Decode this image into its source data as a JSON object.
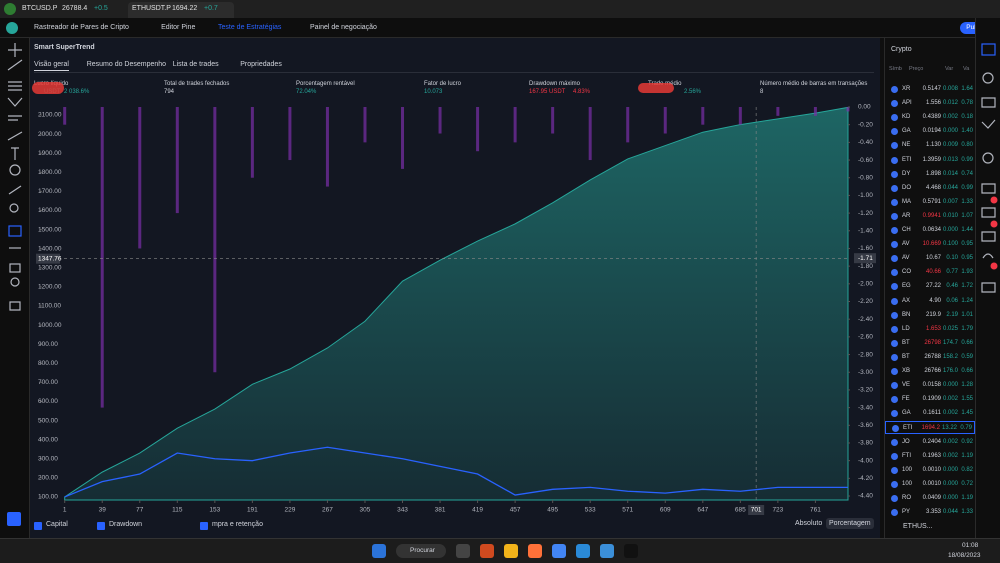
{
  "browser": {
    "tabs": [
      {
        "label": "BTCUSD.P",
        "price": "26788.4",
        "change": "+0.5"
      },
      {
        "label": "ETHUSDT.P",
        "price": "1694.22",
        "change": "+0.7"
      }
    ]
  },
  "header": {
    "menu": [
      "Rastreador de Pares de Cripto",
      "Editor Pine",
      "Teste de Estratégias",
      "Painel de negociação"
    ],
    "publish": "Publicar"
  },
  "strategy": {
    "name": "Smart SuperTrend",
    "tabs": [
      "Visão geral",
      "Resumo do Desempenho",
      "Lista de trades",
      "Propriedades"
    ],
    "metrics": [
      {
        "label": "Lucro líquido",
        "value": "USDT",
        "extra": "2 038.6%"
      },
      {
        "label": "Total de trades fechados",
        "value": "794"
      },
      {
        "label": "Porcentagem rentável",
        "value": "72.04%"
      },
      {
        "label": "Fator de lucro",
        "value": "10.073"
      },
      {
        "label": "Drawdown máximo",
        "value": "167.95 USDT",
        "extra": "4.83%"
      },
      {
        "label": "Trade médio",
        "value": "",
        "extra": "2.56%"
      },
      {
        "label": "Número médio de barras em transações",
        "value": "8"
      }
    ],
    "scale_modes": [
      "Absoluto",
      "Porcentagem"
    ]
  },
  "chart_data": {
    "type": "line",
    "x": [
      1,
      39,
      77,
      115,
      153,
      191,
      229,
      267,
      305,
      343,
      381,
      419,
      457,
      495,
      533,
      571,
      609,
      647,
      685,
      723,
      761,
      794
    ],
    "series": [
      {
        "name": "Capital",
        "color": "#26a69a",
        "style": "area",
        "values": [
          100,
          230,
          330,
          460,
          560,
          690,
          770,
          880,
          1020,
          1230,
          1340,
          1440,
          1530,
          1640,
          1760,
          1870,
          1940,
          2010,
          2050,
          2080,
          2110,
          2140
        ]
      },
      {
        "name": "Drawdown",
        "color": "#7b2fa8",
        "style": "bar",
        "axis": "y2",
        "values": [
          -0.2,
          -3.4,
          -1.6,
          -1.2,
          -3.0,
          -0.8,
          -0.6,
          -0.9,
          -0.4,
          -0.7,
          -0.3,
          -0.5,
          -0.4,
          -0.3,
          -0.6,
          -0.4,
          -0.3,
          -0.2,
          -0.2,
          -0.1,
          -0.1,
          -0.05
        ]
      },
      {
        "name": "mpra e retenção",
        "color": "#2962ff",
        "style": "line",
        "values": [
          100,
          180,
          220,
          330,
          300,
          290,
          330,
          360,
          330,
          300,
          260,
          220,
          110,
          140,
          150,
          130,
          120,
          140,
          130,
          150,
          150,
          150
        ]
      }
    ],
    "xlim": [
      -24,
      794
    ],
    "xticks": [
      1,
      39,
      77,
      115,
      153,
      191,
      229,
      267,
      305,
      343,
      381,
      419,
      457,
      495,
      533,
      571,
      609,
      647,
      685,
      723,
      761
    ],
    "ylim": [
      84,
      2142
    ],
    "yticks": [
      {
        "value": 100,
        "label": "100.00"
      },
      {
        "value": 200,
        "label": "200.00"
      },
      {
        "value": 300,
        "label": "300.00"
      },
      {
        "value": 400,
        "label": "400.00"
      },
      {
        "value": 500,
        "label": "500.00"
      },
      {
        "value": 600,
        "label": "600.00"
      },
      {
        "value": 700,
        "label": "700.00"
      },
      {
        "value": 800,
        "label": "800.00"
      },
      {
        "value": 900,
        "label": "900.00"
      },
      {
        "value": 1000,
        "label": "1000.00"
      },
      {
        "value": 1100,
        "label": "1100.00"
      },
      {
        "value": 1200,
        "label": "1200.00"
      },
      {
        "value": 1300,
        "label": "1300.00"
      },
      {
        "value": 1400,
        "label": "1400.00"
      },
      {
        "value": 1500,
        "label": "1500.00"
      },
      {
        "value": 1600,
        "label": "1600.00"
      },
      {
        "value": 1700,
        "label": "1700.00"
      },
      {
        "value": 1800,
        "label": "1800.00"
      },
      {
        "value": 1900,
        "label": "1900.00"
      },
      {
        "value": 2000,
        "label": "2000.00"
      },
      {
        "value": 2100,
        "label": "2100.00"
      }
    ],
    "y2lim": [
      -4.445,
      0
    ],
    "y2ticks": [
      {
        "value": 0,
        "label": "0.00"
      },
      {
        "value": -0.2,
        "label": "-0.20"
      },
      {
        "value": -0.4,
        "label": "-0.40"
      },
      {
        "value": -0.6,
        "label": "-0.60"
      },
      {
        "value": -0.8,
        "label": "-0.80"
      },
      {
        "value": -1,
        "label": "-1.00"
      },
      {
        "value": -1.2,
        "label": "-1.20"
      },
      {
        "value": -1.4,
        "label": "-1.40"
      },
      {
        "value": -1.6,
        "label": "-1.60"
      },
      {
        "value": -1.8,
        "label": "-1.80"
      },
      {
        "value": -2,
        "label": "-2.00"
      },
      {
        "value": -2.2,
        "label": "-2.20"
      },
      {
        "value": -2.4,
        "label": "-2.40"
      },
      {
        "value": -2.6,
        "label": "-2.60"
      },
      {
        "value": -2.8,
        "label": "-2.80"
      },
      {
        "value": -3,
        "label": "-3.00"
      },
      {
        "value": -3.2,
        "label": "-3.20"
      },
      {
        "value": -3.4,
        "label": "-3.40"
      },
      {
        "value": -3.6,
        "label": "-3.60"
      },
      {
        "value": -3.8,
        "label": "-3.80"
      },
      {
        "value": -4,
        "label": "-4.00"
      },
      {
        "value": -4.2,
        "label": "-4.20"
      },
      {
        "value": -4.4,
        "label": "-4.40"
      }
    ],
    "crosshair": {
      "x": 701,
      "y": 1347.76,
      "y2": -1.71
    }
  },
  "watchlist": {
    "title": "Crypto",
    "columns": [
      "Símb",
      "Preço",
      "Var",
      "Va"
    ],
    "rows": [
      [
        "XR",
        "0.5147",
        "0.008",
        "1.64"
      ],
      [
        "API",
        "1.556",
        "0.012",
        "0.78"
      ],
      [
        "KD",
        "0.4389",
        "0.002",
        "0.18"
      ],
      [
        "GA",
        "0.0194",
        "0.000",
        "1.40"
      ],
      [
        "NE",
        "1.130",
        "0.009",
        "0.80"
      ],
      [
        "ETI",
        "1.3959",
        "0.013",
        "0.99"
      ],
      [
        "DY",
        "1.898",
        "0.014",
        "0.74"
      ],
      [
        "DO",
        "4.468",
        "0.044",
        "0.99"
      ],
      [
        "MA",
        "0.5791",
        "0.007",
        "1.33"
      ],
      [
        "AR",
        "0.9941",
        "0.010",
        "1.07"
      ],
      [
        "CH",
        "0.0634",
        "0.000",
        "1.44"
      ],
      [
        "AV",
        "10.669",
        "0.100",
        "0.95"
      ],
      [
        "AV",
        "10.67",
        "0.10",
        "0.95"
      ],
      [
        "CO",
        "40.66",
        "0.77",
        "1.93"
      ],
      [
        "EG",
        "27.22",
        "0.46",
        "1.72"
      ],
      [
        "AX",
        "4.90",
        "0.06",
        "1.24"
      ],
      [
        "BN",
        "219.9",
        "2.19",
        "1.01"
      ],
      [
        "LD",
        "1.653",
        "0.025",
        "1.79"
      ],
      [
        "BT",
        "26798",
        "174.7",
        "0.66"
      ],
      [
        "BT",
        "26788",
        "158.2",
        "0.59"
      ],
      [
        "XB",
        "26766",
        "176.0",
        "0.66"
      ],
      [
        "VE",
        "0.0158",
        "0.000",
        "1.28"
      ],
      [
        "FE",
        "0.1909",
        "0.002",
        "1.55"
      ],
      [
        "GA",
        "0.1611",
        "0.002",
        "1.45"
      ],
      [
        "ETI",
        "1694.2",
        "13.22",
        "0.79"
      ],
      [
        "JO",
        "0.2404",
        "0.002",
        "0.92"
      ],
      [
        "FTI",
        "0.1963",
        "0.002",
        "1.19"
      ],
      [
        "100",
        "0.0010",
        "0.000",
        "0.82"
      ],
      [
        "100",
        "0.0010",
        "0.000",
        "0.72"
      ],
      [
        "RO",
        "0.0409",
        "0.000",
        "1.19"
      ],
      [
        "PY",
        "3.353",
        "0.044",
        "1.33"
      ]
    ],
    "price_colors": [
      "#d1d4dc",
      "#d1d4dc",
      "#d1d4dc",
      "#d1d4dc",
      "#d1d4dc",
      "#d1d4dc",
      "#d1d4dc",
      "#d1d4dc",
      "#d1d4dc",
      "#f23645",
      "#d1d4dc",
      "#f23645",
      "#d1d4dc",
      "#f23645",
      "#d1d4dc",
      "#d1d4dc",
      "#d1d4dc",
      "#f23645",
      "#f23645",
      "#d1d4dc",
      "#d1d4dc",
      "#d1d4dc",
      "#d1d4dc",
      "#d1d4dc",
      "#f23645",
      "#d1d4dc",
      "#d1d4dc",
      "#d1d4dc",
      "#d1d4dc",
      "#d1d4dc",
      "#d1d4dc"
    ],
    "footer": "ETHUS..."
  },
  "taskbar": {
    "search": "Procurar",
    "time": "01:08",
    "date": "18/08/2023"
  }
}
